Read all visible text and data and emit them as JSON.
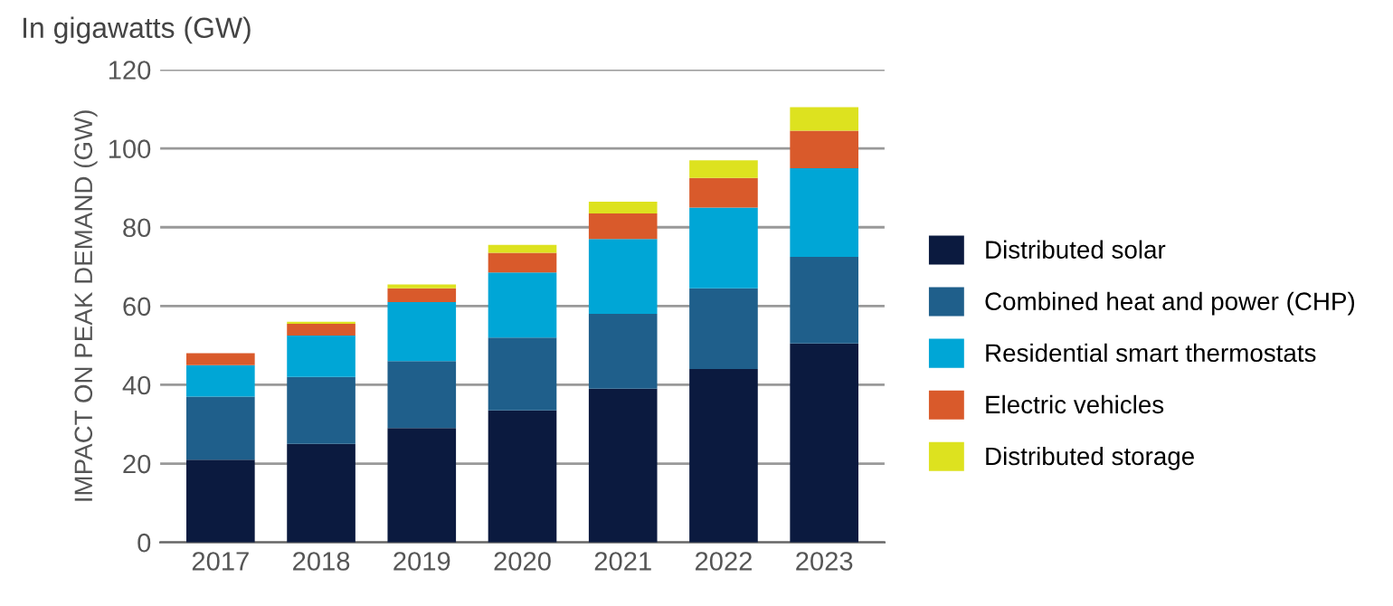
{
  "chart_data": {
    "type": "bar",
    "title": "In gigawatts (GW)",
    "ylabel": "IMPACT ON PEAK DEMAND (GW)",
    "categories": [
      "2017",
      "2018",
      "2019",
      "2020",
      "2021",
      "2022",
      "2023"
    ],
    "stacked": true,
    "ylim": [
      0,
      120
    ],
    "yticks": [
      0,
      20,
      40,
      60,
      80,
      100,
      120
    ],
    "grid": "y",
    "legend": "right",
    "series": [
      {
        "name": "Distributed solar",
        "color": "#0b1a3f",
        "values": [
          21,
          25,
          29,
          33.5,
          39,
          44,
          50.5
        ]
      },
      {
        "name": "Combined heat and power (CHP)",
        "color": "#1f5f8b",
        "values": [
          16,
          17,
          17,
          18.5,
          19,
          20.5,
          22
        ]
      },
      {
        "name": "Residential smart thermostats",
        "color": "#00a6d6",
        "values": [
          8,
          10.5,
          15,
          16.5,
          19,
          20.5,
          22.5
        ]
      },
      {
        "name": "Electric vehicles",
        "color": "#d95a2b",
        "values": [
          3,
          3,
          3.5,
          5,
          6.5,
          7.5,
          9.5
        ]
      },
      {
        "name": "Distributed storage",
        "color": "#dde21f",
        "values": [
          0,
          0.5,
          1,
          2,
          3,
          4.5,
          6
        ]
      }
    ]
  }
}
